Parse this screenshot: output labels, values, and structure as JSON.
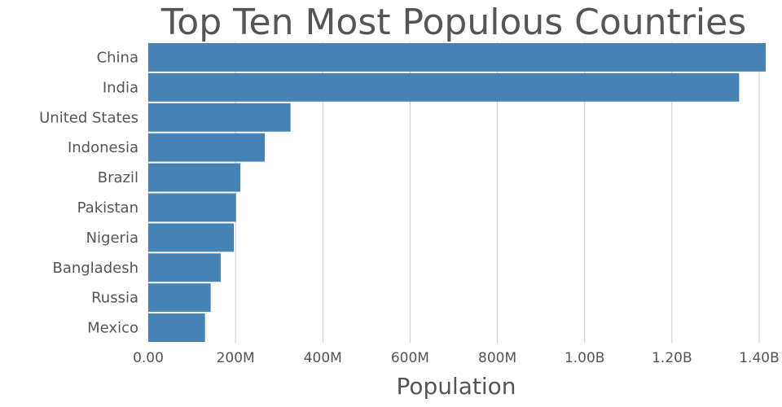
{
  "chart_data": {
    "type": "bar",
    "orientation": "horizontal",
    "title": "Top Ten Most Populous Countries",
    "xlabel": "Population",
    "ylabel": "",
    "categories": [
      "China",
      "India",
      "United States",
      "Indonesia",
      "Brazil",
      "Pakistan",
      "Nigeria",
      "Bangladesh",
      "Russia",
      "Mexico"
    ],
    "values": [
      1415000000,
      1354000000,
      326000000,
      267000000,
      211000000,
      201000000,
      196000000,
      166000000,
      143000000,
      130000000
    ],
    "xlim": [
      0,
      1400000000
    ],
    "x_ticks": [
      0,
      200000000,
      400000000,
      600000000,
      800000000,
      1000000000,
      1200000000,
      1400000000
    ],
    "x_tick_labels": [
      "0.00",
      "200M",
      "400M",
      "600M",
      "800M",
      "1.00B",
      "1.20B",
      "1.40B"
    ],
    "grid": "vertical",
    "bar_color": "#4682b4",
    "legend": "none"
  }
}
